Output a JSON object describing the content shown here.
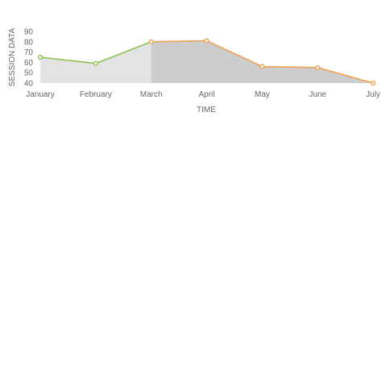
{
  "chart_data": {
    "type": "area",
    "categories": [
      "January",
      "February",
      "March",
      "April",
      "May",
      "June",
      "July"
    ],
    "series": [
      {
        "values": [
          65,
          59,
          80,
          81,
          56,
          55,
          40
        ],
        "line_color": "#8bc34a",
        "highlight_line_color": "#f0a050",
        "fill_color": "#e3e3e3",
        "highlight_fill_color": "#cdcdcd"
      }
    ],
    "highlight_range": {
      "from": "March",
      "to": "July"
    },
    "xlabel": "TIME",
    "ylabel": "SESSION DATA",
    "ylim": [
      40,
      90
    ],
    "yticks": [
      40,
      50,
      60,
      70,
      80,
      90
    ],
    "grid": false,
    "legend": "none"
  }
}
